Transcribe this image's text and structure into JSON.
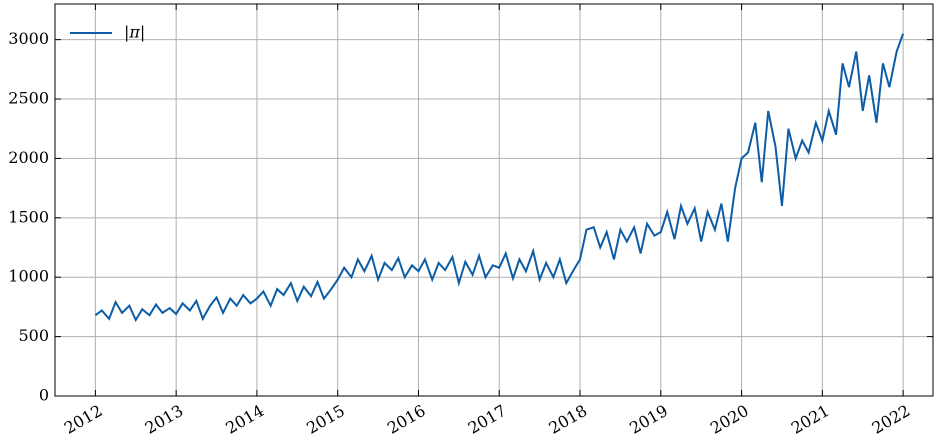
{
  "chart_data": {
    "type": "line",
    "series": [
      {
        "name": "|π|",
        "color": "#0c5da5",
        "x": [
          2012,
          2012.08,
          2012.17,
          2012.25,
          2012.33,
          2012.42,
          2012.5,
          2012.58,
          2012.67,
          2012.75,
          2012.83,
          2012.92,
          2013,
          2013.08,
          2013.17,
          2013.25,
          2013.33,
          2013.42,
          2013.5,
          2013.58,
          2013.67,
          2013.75,
          2013.83,
          2013.92,
          2014,
          2014.08,
          2014.17,
          2014.25,
          2014.33,
          2014.42,
          2014.5,
          2014.58,
          2014.67,
          2014.75,
          2014.83,
          2014.92,
          2015,
          2015.08,
          2015.17,
          2015.25,
          2015.33,
          2015.42,
          2015.5,
          2015.58,
          2015.67,
          2015.75,
          2015.83,
          2015.92,
          2016,
          2016.08,
          2016.17,
          2016.25,
          2016.33,
          2016.42,
          2016.5,
          2016.58,
          2016.67,
          2016.75,
          2016.83,
          2016.92,
          2017,
          2017.08,
          2017.17,
          2017.25,
          2017.33,
          2017.42,
          2017.5,
          2017.58,
          2017.67,
          2017.75,
          2017.83,
          2017.92,
          2018,
          2018.08,
          2018.17,
          2018.25,
          2018.33,
          2018.42,
          2018.5,
          2018.58,
          2018.67,
          2018.75,
          2018.83,
          2018.92,
          2019,
          2019.08,
          2019.17,
          2019.25,
          2019.33,
          2019.42,
          2019.5,
          2019.58,
          2019.67,
          2019.75,
          2019.83,
          2019.92,
          2020,
          2020.08,
          2020.17,
          2020.25,
          2020.33,
          2020.42,
          2020.5,
          2020.58,
          2020.67,
          2020.75,
          2020.83,
          2020.92,
          2021,
          2021.08,
          2021.17,
          2021.25,
          2021.33,
          2021.42,
          2021.5,
          2021.58,
          2021.67,
          2021.75,
          2021.83,
          2021.92,
          2022
        ],
        "values": [
          680,
          720,
          650,
          790,
          700,
          760,
          640,
          730,
          680,
          770,
          700,
          740,
          690,
          780,
          720,
          800,
          650,
          760,
          830,
          700,
          820,
          760,
          850,
          780,
          820,
          880,
          760,
          900,
          850,
          950,
          800,
          920,
          840,
          960,
          820,
          900,
          980,
          1080,
          1000,
          1150,
          1050,
          1180,
          980,
          1120,
          1060,
          1160,
          1000,
          1100,
          1050,
          1150,
          980,
          1120,
          1060,
          1170,
          950,
          1130,
          1020,
          1180,
          1000,
          1100,
          1080,
          1200,
          990,
          1150,
          1050,
          1220,
          980,
          1120,
          1000,
          1150,
          950,
          1060,
          1150,
          1400,
          1420,
          1250,
          1380,
          1150,
          1400,
          1300,
          1420,
          1200,
          1450,
          1350,
          1380,
          1550,
          1320,
          1600,
          1450,
          1580,
          1300,
          1550,
          1400,
          1620,
          1300,
          1750,
          2000,
          2050,
          2300,
          1800,
          2400,
          2100,
          1600,
          2250,
          2000,
          2150,
          2050,
          2300,
          2150,
          2400,
          2200,
          2800,
          2600,
          2900,
          2400,
          2700,
          2300,
          2800,
          2600,
          2900,
          3050
        ]
      }
    ],
    "xlim": [
      2011.5,
      2022.37
    ],
    "xticks": [
      2012,
      2013,
      2014,
      2015,
      2016,
      2017,
      2018,
      2019,
      2020,
      2021,
      2022
    ],
    "ylim": [
      0,
      3300
    ],
    "yticks": [
      0,
      500,
      1000,
      1500,
      2000,
      2500,
      3000
    ],
    "grid": true,
    "legend": "upper left"
  }
}
